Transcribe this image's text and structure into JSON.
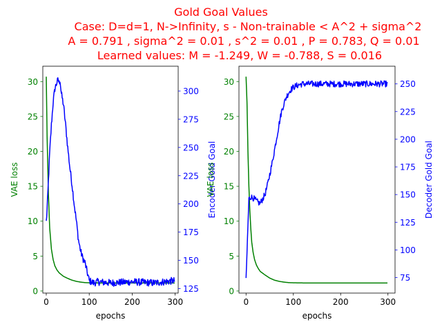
{
  "title": {
    "color": "#ff0000",
    "lines": [
      "Gold Goal Values",
      "Case: D=d=1, N->Infinity, s - Non-trainable < A^2 + sigma^2",
      "A = 0.791 , sigma^2 = 0.01 , s^2 = 0.01 , P = 0.783, Q = 0.01",
      "Learned values: M = -1.249, W = -0.788, S = 0.016"
    ]
  },
  "chart_data": [
    {
      "type": "line",
      "xlabel": "epochs",
      "ylabel_left": "VAE loss",
      "ylabel_right": "Encoder Gold Goal",
      "xlim": [
        -8,
        307
      ],
      "ylim_left": [
        -0.3,
        32.2
      ],
      "ylim_right": [
        121,
        322
      ],
      "xticks": [
        0,
        100,
        200,
        300
      ],
      "yticks_left": [
        0,
        5,
        10,
        15,
        20,
        25,
        30
      ],
      "yticks_right": [
        125,
        150,
        175,
        200,
        225,
        250,
        275,
        300
      ],
      "colors": {
        "left": "#008000",
        "right": "#0000ff"
      },
      "series": [
        {
          "axis": "left",
          "x": [
            0,
            2,
            5,
            8,
            12,
            16,
            20,
            25,
            30,
            40,
            50,
            60,
            70,
            80,
            90,
            100,
            120,
            150,
            200,
            250,
            299
          ],
          "y": [
            30.7,
            22.0,
            14.0,
            9.0,
            6.0,
            4.5,
            3.6,
            3.0,
            2.6,
            2.1,
            1.8,
            1.55,
            1.38,
            1.27,
            1.2,
            1.17,
            1.15,
            1.15,
            1.15,
            1.15,
            1.15
          ]
        },
        {
          "axis": "right",
          "x": [
            0,
            2,
            5,
            8,
            12,
            16,
            20,
            25,
            28,
            30,
            32,
            35,
            40,
            45,
            50,
            55,
            60,
            65,
            70,
            75,
            80,
            85,
            90,
            95,
            100,
            110,
            120,
            150,
            200,
            250,
            299
          ],
          "y": [
            184,
            195,
            220,
            245,
            270,
            290,
            302,
            308,
            310,
            307,
            310,
            298,
            288,
            270,
            250,
            232,
            217,
            200,
            185,
            168,
            158,
            152,
            148,
            140,
            132,
            130,
            131,
            130,
            131,
            130,
            132
          ],
          "noise": 3.2
        }
      ]
    },
    {
      "type": "line",
      "xlabel": "epochs",
      "ylabel_left": "VAE loss",
      "ylabel_right": "Decoder Gold Goal",
      "xlim": [
        -15,
        315
      ],
      "ylim_left": [
        -0.3,
        32.2
      ],
      "ylim_right": [
        61,
        266
      ],
      "xticks": [
        0,
        100,
        200,
        300
      ],
      "yticks_left": [
        0,
        5,
        10,
        15,
        20,
        25,
        30
      ],
      "yticks_right": [
        75,
        100,
        125,
        150,
        175,
        200,
        225,
        250
      ],
      "colors": {
        "left": "#008000",
        "right": "#0000ff"
      },
      "series": [
        {
          "axis": "left",
          "x": [
            0,
            2,
            4,
            6,
            8,
            10,
            12,
            15,
            18,
            22,
            26,
            30,
            40,
            50,
            60,
            70,
            80,
            90,
            100,
            120,
            150,
            200,
            250,
            299
          ],
          "y": [
            30.7,
            27.0,
            20.0,
            15.0,
            11.5,
            9.0,
            7.0,
            5.5,
            4.5,
            3.7,
            3.2,
            2.8,
            2.3,
            1.85,
            1.55,
            1.38,
            1.27,
            1.2,
            1.17,
            1.15,
            1.15,
            1.15,
            1.15,
            1.15
          ]
        },
        {
          "axis": "right",
          "x": [
            0,
            3,
            6,
            10,
            15,
            20,
            25,
            30,
            35,
            40,
            45,
            50,
            55,
            60,
            65,
            70,
            75,
            80,
            85,
            90,
            95,
            100,
            110,
            120,
            150,
            200,
            250,
            299
          ],
          "y": [
            72,
            110,
            146,
            148,
            147,
            145,
            143,
            142,
            146,
            150,
            158,
            168,
            178,
            190,
            202,
            214,
            225,
            232,
            238,
            242,
            245,
            247,
            249,
            250,
            250,
            250,
            250,
            250
          ],
          "noise": 2.8
        }
      ]
    }
  ]
}
